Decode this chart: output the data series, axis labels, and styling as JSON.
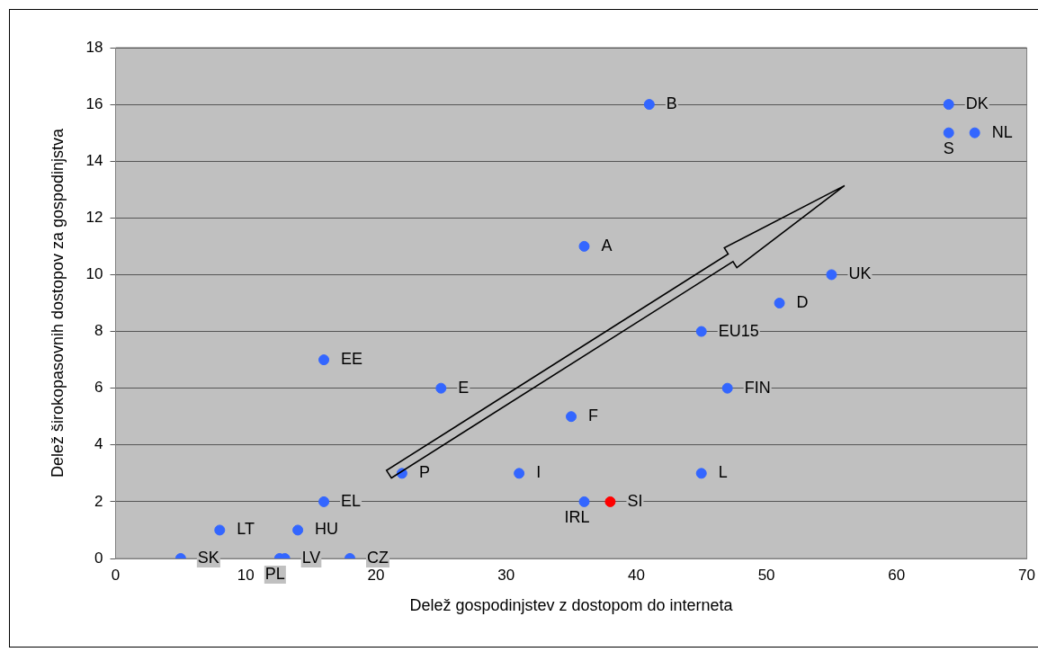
{
  "chart_data": {
    "type": "scatter",
    "xlabel": "Delež gospodinjstev z dostopom do interneta",
    "ylabel": "Delež širokopasovnih dostopov za gospodinjstva",
    "x": [
      41,
      64,
      64,
      66,
      36,
      55,
      51,
      45,
      16,
      25,
      47,
      35,
      22,
      31,
      45,
      16,
      36,
      38,
      8,
      14,
      5,
      12.6,
      13,
      18
    ],
    "values": [
      16,
      16,
      15,
      15,
      11,
      10,
      9,
      8,
      7,
      6,
      6,
      5,
      3,
      3,
      3,
      2,
      2,
      2,
      1,
      1,
      0,
      0,
      0,
      0
    ],
    "colors": [
      "#3366ff",
      "#3366ff",
      "#3366ff",
      "#3366ff",
      "#3366ff",
      "#3366ff",
      "#3366ff",
      "#3366ff",
      "#3366ff",
      "#3366ff",
      "#3366ff",
      "#3366ff",
      "#3366ff",
      "#3366ff",
      "#3366ff",
      "#3366ff",
      "#3366ff",
      "#ff0000",
      "#3366ff",
      "#3366ff",
      "#3366ff",
      "#3366ff",
      "#3366ff",
      "#3366ff"
    ],
    "annotations": [
      {
        "text": "B",
        "x": 41,
        "y": 16
      },
      {
        "text": "DK",
        "x": 64,
        "y": 16
      },
      {
        "text": "S",
        "x": 64,
        "y": 15
      },
      {
        "text": "NL",
        "x": 66,
        "y": 15
      },
      {
        "text": "A",
        "x": 36,
        "y": 11
      },
      {
        "text": "UK",
        "x": 55,
        "y": 10
      },
      {
        "text": "D",
        "x": 51,
        "y": 9
      },
      {
        "text": "EU15",
        "x": 45,
        "y": 8
      },
      {
        "text": "EE",
        "x": 16,
        "y": 7
      },
      {
        "text": "E",
        "x": 25,
        "y": 6
      },
      {
        "text": "FIN",
        "x": 47,
        "y": 6
      },
      {
        "text": "F",
        "x": 35,
        "y": 5
      },
      {
        "text": "P",
        "x": 22,
        "y": 3
      },
      {
        "text": "I",
        "x": 31,
        "y": 3
      },
      {
        "text": "L",
        "x": 45,
        "y": 3
      },
      {
        "text": "EL",
        "x": 16,
        "y": 2
      },
      {
        "text": "IRL",
        "x": 36,
        "y": 2
      },
      {
        "text": "SI",
        "x": 38,
        "y": 2
      },
      {
        "text": "LT",
        "x": 8,
        "y": 1
      },
      {
        "text": "HU",
        "x": 14,
        "y": 1
      },
      {
        "text": "SK",
        "x": 5,
        "y": 0
      },
      {
        "text": "PL",
        "x": 12.6,
        "y": 0
      },
      {
        "text": "LV",
        "x": 13,
        "y": 0
      },
      {
        "text": "CZ",
        "x": 18,
        "y": 0
      }
    ],
    "xlim": [
      0,
      70
    ],
    "xticks": [
      0,
      10,
      20,
      30,
      40,
      50,
      60,
      70
    ],
    "ylim": [
      0,
      18
    ],
    "yticks": [
      0,
      2,
      4,
      6,
      8,
      10,
      12,
      14,
      16,
      18
    ],
    "grid": "y",
    "legend": false,
    "marker": "circle"
  }
}
